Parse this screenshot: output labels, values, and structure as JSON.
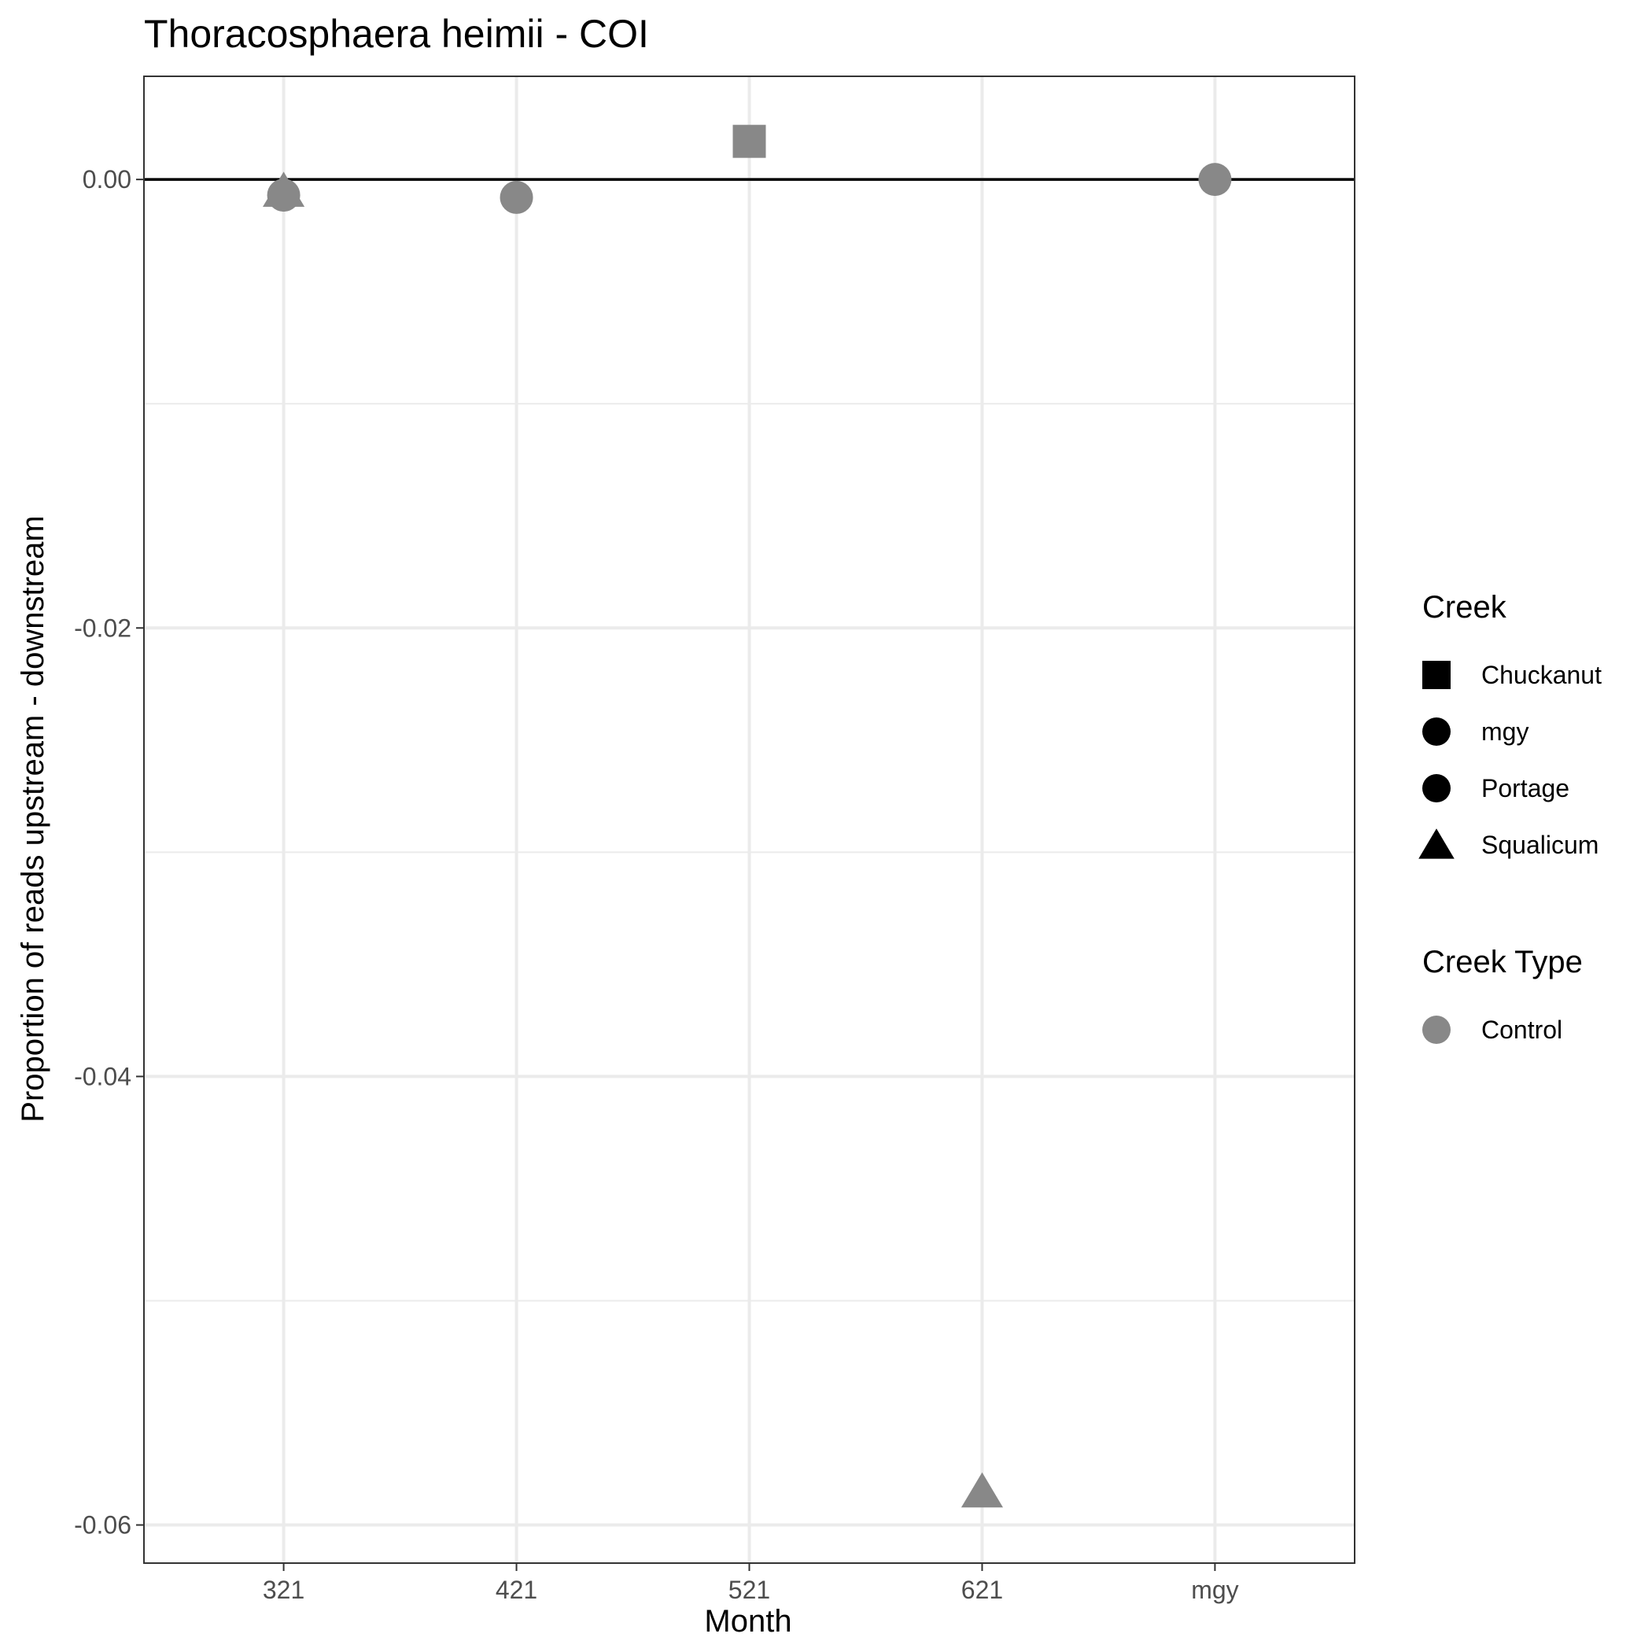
{
  "chart_data": {
    "type": "scatter",
    "title": "Thoracosphaera heimii - COI",
    "xlabel": "Month",
    "ylabel": "Proportion of reads upstream - downstream",
    "categories": [
      "321",
      "421",
      "521",
      "621",
      "mgy"
    ],
    "ylim": [
      -0.0617,
      0.0046
    ],
    "y_ticks": [
      0.0,
      -0.02,
      -0.04,
      -0.06
    ],
    "y_tick_labels": [
      "0.00",
      "-0.02",
      "-0.04",
      "-0.06"
    ],
    "reference_line": 0,
    "grid": true,
    "legend_position": "right",
    "series": [
      {
        "name": "Chuckanut",
        "shape": "square",
        "points": [
          {
            "x": "521",
            "y": 0.0017
          }
        ]
      },
      {
        "name": "mgy",
        "shape": "circle",
        "points": [
          {
            "x": "mgy",
            "y": 0.0
          }
        ]
      },
      {
        "name": "Portage",
        "shape": "circle",
        "points": [
          {
            "x": "321",
            "y": -0.0007
          },
          {
            "x": "421",
            "y": -0.0008
          }
        ]
      },
      {
        "name": "Squalicum",
        "shape": "triangle",
        "points": [
          {
            "x": "321",
            "y": -0.0005
          },
          {
            "x": "621",
            "y": -0.0585
          }
        ]
      }
    ],
    "legends": [
      {
        "title": "Creek",
        "entries": [
          {
            "label": "Chuckanut",
            "shape": "square"
          },
          {
            "label": "mgy",
            "shape": "circle"
          },
          {
            "label": "Portage",
            "shape": "circle"
          },
          {
            "label": "Squalicum",
            "shape": "triangle"
          }
        ]
      },
      {
        "title": "Creek Type",
        "entries": [
          {
            "label": "Control",
            "shape": "circle"
          }
        ]
      }
    ],
    "colors": {
      "point": "#888888",
      "legend_shape": "#000000",
      "grid": "#ebebeb",
      "reference": "#000000",
      "panel_border": "#333333"
    }
  }
}
